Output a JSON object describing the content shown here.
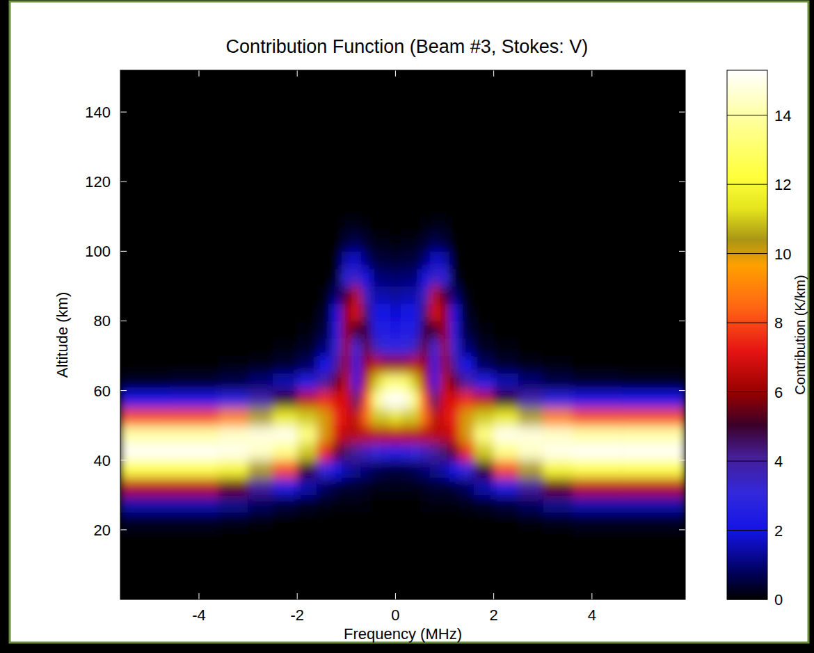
{
  "chart_data": {
    "type": "heatmap",
    "title": "Contribution Function (Beam #3, Stokes: V)",
    "x_label": "Frequency (MHz)",
    "y_label": "Altitude (km)",
    "xlim": [
      -5.6,
      5.9
    ],
    "ylim": [
      0,
      152
    ],
    "xticks": [
      -4,
      -2,
      0,
      2,
      4
    ],
    "yticks": [
      20,
      40,
      60,
      80,
      100,
      120,
      140
    ],
    "x_edges": [
      -5.6,
      -4.6,
      -3.6,
      -3,
      -2.5,
      -2,
      -1.6,
      -1.3,
      -1.1,
      -0.9,
      -0.7,
      -0.5,
      -0.3,
      -0.1,
      0.1,
      0.3,
      0.5,
      0.7,
      0.9,
      1.1,
      1.3,
      1.6,
      2,
      2.5,
      3,
      3.6,
      4.6,
      5.9
    ],
    "y_edges": [
      0,
      20,
      25,
      30,
      35,
      40,
      45,
      50,
      55,
      60,
      65,
      70,
      75,
      80,
      85,
      90,
      95,
      100,
      105,
      110,
      152
    ],
    "values": [
      [
        0,
        0,
        0,
        0,
        0,
        0,
        0,
        0,
        0,
        0,
        0,
        0,
        0,
        0,
        0,
        0,
        0,
        0,
        0,
        0,
        0,
        0,
        0,
        0,
        0,
        0,
        0
      ],
      [
        0.3,
        0.3,
        0.2,
        0.1,
        0,
        0,
        0,
        0,
        0,
        0,
        0,
        0,
        0,
        0,
        0,
        0,
        0,
        0,
        0,
        0,
        0,
        0,
        0,
        0.1,
        0.2,
        0.3,
        0.3
      ],
      [
        1.5,
        1.5,
        1.2,
        0.8,
        0.5,
        0.3,
        0.2,
        0.1,
        0.1,
        0.1,
        0.1,
        0,
        0,
        0,
        0,
        0,
        0.1,
        0.1,
        0.1,
        0.1,
        0.2,
        0.3,
        0.5,
        0.8,
        1.2,
        1.5,
        1.5
      ],
      [
        6.5,
        6.5,
        5.5,
        4,
        2.5,
        1.5,
        0.8,
        0.5,
        0.4,
        0.4,
        0.3,
        0.2,
        0.2,
        0.2,
        0.2,
        0.2,
        0.3,
        0.4,
        0.4,
        0.5,
        0.8,
        1.5,
        2.5,
        4,
        5.5,
        6.5,
        6.5
      ],
      [
        12.5,
        12.5,
        12,
        10.5,
        8,
        5,
        3,
        2,
        1.5,
        1.2,
        1,
        0.7,
        0.6,
        0.5,
        0.6,
        0.7,
        1,
        1.2,
        1.5,
        2,
        3,
        5,
        8,
        10.5,
        12,
        12.5,
        12.5
      ],
      [
        15.2,
        15.2,
        15,
        14.5,
        13.5,
        11,
        7.5,
        5.5,
        4.5,
        4,
        3.5,
        3,
        2.8,
        2.5,
        2.8,
        3,
        3.5,
        4,
        4.5,
        5.5,
        7.5,
        11,
        13.5,
        14.5,
        15,
        15.2,
        15.2
      ],
      [
        14,
        14,
        14.5,
        14.8,
        15,
        13.5,
        10,
        7,
        6.5,
        6.5,
        6.5,
        6.5,
        6.5,
        6.5,
        6.5,
        6.5,
        6.5,
        6.5,
        6.5,
        7,
        10,
        13.5,
        15,
        14.8,
        14.5,
        14,
        14
      ],
      [
        8,
        8,
        9,
        10.5,
        11.5,
        11,
        10,
        7.5,
        7,
        6.5,
        8.5,
        11,
        11,
        11.5,
        11,
        11,
        8.5,
        6.5,
        7,
        7.5,
        10,
        11,
        11.5,
        10.5,
        9,
        8,
        8
      ],
      [
        2,
        2.2,
        2.8,
        3.8,
        5,
        6.5,
        7.5,
        7,
        7,
        4.5,
        8,
        13.5,
        15,
        15.3,
        15,
        13.5,
        8,
        4.5,
        7,
        7,
        7.5,
        6.5,
        5,
        3.8,
        2.8,
        2.2,
        2
      ],
      [
        0.3,
        0.4,
        0.6,
        1,
        1.5,
        2.5,
        4,
        5.5,
        6.5,
        2.5,
        6.5,
        11,
        13,
        13.5,
        13,
        11,
        6.5,
        2.5,
        6.5,
        5.5,
        4,
        2.5,
        1.5,
        1,
        0.6,
        0.4,
        0.3
      ],
      [
        0,
        0,
        0.1,
        0.2,
        0.4,
        0.8,
        2,
        4,
        6,
        2.5,
        6,
        6.5,
        6,
        6,
        6,
        6.5,
        6,
        2.5,
        6,
        4,
        2,
        0.8,
        0.4,
        0.2,
        0.1,
        0,
        0
      ],
      [
        0,
        0,
        0,
        0,
        0.1,
        0.3,
        1,
        3,
        6,
        3,
        5.5,
        3.5,
        3,
        3,
        3,
        3.5,
        5.5,
        3,
        6,
        3,
        1,
        0.3,
        0.1,
        0,
        0,
        0,
        0
      ],
      [
        0,
        0,
        0,
        0,
        0,
        0.1,
        0.5,
        2.5,
        6,
        5,
        5,
        2.5,
        2.5,
        2.2,
        2.5,
        2.5,
        5,
        5,
        6,
        2.5,
        0.5,
        0.1,
        0,
        0,
        0,
        0,
        0
      ],
      [
        0,
        0,
        0,
        0,
        0,
        0,
        0.3,
        2,
        6,
        7,
        4.5,
        2,
        2,
        1.8,
        2,
        2,
        4.5,
        7,
        6,
        2,
        0.3,
        0,
        0,
        0,
        0,
        0,
        0
      ],
      [
        0,
        0,
        0,
        0,
        0,
        0,
        0.1,
        1,
        5,
        6.5,
        3.5,
        1.5,
        1.5,
        1.3,
        1.5,
        1.5,
        3.5,
        6.5,
        5,
        1,
        0.1,
        0,
        0,
        0,
        0,
        0,
        0
      ],
      [
        0,
        0,
        0,
        0,
        0,
        0,
        0,
        0.3,
        3,
        3.5,
        2,
        1,
        1,
        0.9,
        1,
        1,
        2,
        3.5,
        3,
        0.3,
        0,
        0,
        0,
        0,
        0,
        0,
        0
      ],
      [
        0,
        0,
        0,
        0,
        0,
        0,
        0,
        0.1,
        1.5,
        1.8,
        1,
        0.5,
        0.5,
        0.4,
        0.5,
        0.5,
        1,
        1.8,
        1.5,
        0.1,
        0,
        0,
        0,
        0,
        0,
        0,
        0
      ],
      [
        0,
        0,
        0,
        0,
        0,
        0,
        0,
        0,
        0.5,
        0.7,
        0.4,
        0.2,
        0.2,
        0.1,
        0.2,
        0.2,
        0.4,
        0.7,
        0.5,
        0,
        0,
        0,
        0,
        0,
        0,
        0,
        0
      ],
      [
        0,
        0,
        0,
        0,
        0,
        0,
        0,
        0,
        0.2,
        0.2,
        0.1,
        0,
        0,
        0,
        0,
        0,
        0.1,
        0.2,
        0.2,
        0,
        0,
        0,
        0,
        0,
        0,
        0,
        0
      ],
      [
        0,
        0,
        0,
        0,
        0,
        0,
        0,
        0,
        0,
        0,
        0,
        0,
        0,
        0,
        0,
        0,
        0,
        0,
        0,
        0,
        0,
        0,
        0,
        0,
        0,
        0,
        0
      ]
    ],
    "clim": [
      0,
      15.3
    ],
    "cticks": [
      0,
      2,
      4,
      6,
      8,
      10,
      12,
      14
    ],
    "colorbar_label": "Contribution (K/km)"
  }
}
